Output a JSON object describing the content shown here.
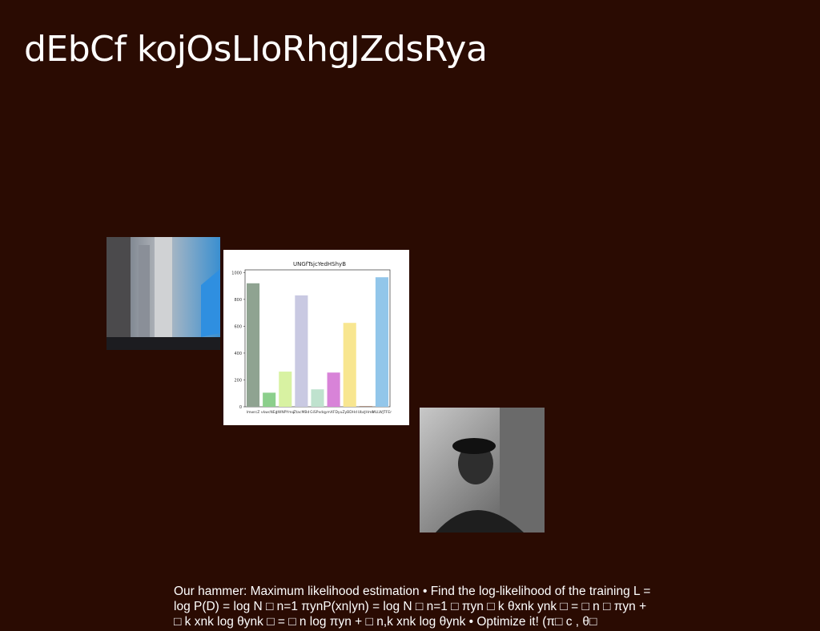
{
  "title": "dEbCf kojOsLIoRhgJZdsRya",
  "chart_data": {
    "type": "bar",
    "title": "UNGfTsjcYedHShyB",
    "categories": [
      "lmwrcZ",
      "vkwcNEg",
      "tWNPYmq",
      "ZtacMBd",
      "GiSPxdq",
      "ymXFDyu",
      "ZyBDHd",
      "UbzJHmk",
      "MLLWJTFEr"
    ],
    "values": [
      920,
      105,
      262,
      830,
      130,
      255,
      625,
      5,
      965
    ],
    "colors": [
      "#8fa391",
      "#8ccf8c",
      "#d8f2a2",
      "#c9c9e2",
      "#bfe2ce",
      "#d883d8",
      "#f8e690",
      "#9c7d6c",
      "#92c6ea"
    ],
    "ylim": [
      0,
      1020
    ],
    "yticks": [
      0,
      200,
      400,
      600,
      800,
      1000
    ]
  },
  "body": "Our hammer: Maximum likelihood estimation • Find the log-likelihood of the training L = log P(D) = log N □ n=1 πynP(xn|yn) = log N □ n=1 □ πyn □ k θxnk ynk □ = □ n □ πyn + □ k xnk log θynk □ = □ n log πyn + □ n,k xnk log θynk • Optimize it! (π□ c , θ□"
}
